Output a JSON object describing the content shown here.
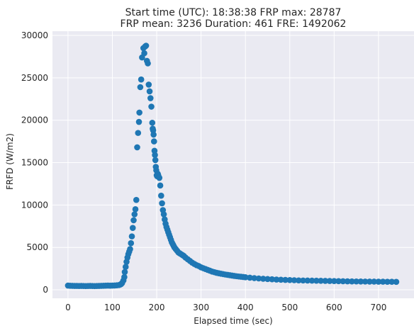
{
  "chart_data": {
    "type": "scatter",
    "title_line1": "Start time (UTC): 18:38:38 FRP max: 28787",
    "title_line2": "FRP mean: 3236 Duration: 461 FRE: 1492062",
    "xlabel": "Elapsed time (sec)",
    "ylabel": "FRFD (W/m2)",
    "xlim": [
      -35,
      780
    ],
    "ylim": [
      -1000,
      30500
    ],
    "xticks": [
      0,
      100,
      200,
      300,
      400,
      500,
      600,
      700
    ],
    "yticks": [
      0,
      5000,
      10000,
      15000,
      20000,
      25000,
      30000
    ],
    "grid": true,
    "colors": {
      "marker": "#1f77b4",
      "background": "#eaeaf2",
      "grid": "#ffffff"
    },
    "series": [
      {
        "points": [
          [
            0,
            500
          ],
          [
            5,
            480
          ],
          [
            10,
            470
          ],
          [
            15,
            460
          ],
          [
            20,
            460
          ],
          [
            25,
            450
          ],
          [
            30,
            460
          ],
          [
            35,
            450
          ],
          [
            40,
            440
          ],
          [
            45,
            450
          ],
          [
            50,
            460
          ],
          [
            55,
            450
          ],
          [
            60,
            440
          ],
          [
            65,
            450
          ],
          [
            70,
            460
          ],
          [
            75,
            470
          ],
          [
            80,
            480
          ],
          [
            85,
            490
          ],
          [
            90,
            500
          ],
          [
            95,
            490
          ],
          [
            100,
            500
          ],
          [
            105,
            510
          ],
          [
            110,
            530
          ],
          [
            115,
            560
          ],
          [
            118,
            620
          ],
          [
            120,
            680
          ],
          [
            122,
            800
          ],
          [
            125,
            1100
          ],
          [
            127,
            1500
          ],
          [
            128,
            2100
          ],
          [
            130,
            2700
          ],
          [
            132,
            3300
          ],
          [
            134,
            3800
          ],
          [
            136,
            4200
          ],
          [
            138,
            4500
          ],
          [
            140,
            4800
          ],
          [
            142,
            5500
          ],
          [
            144,
            6300
          ],
          [
            146,
            7300
          ],
          [
            148,
            8200
          ],
          [
            150,
            8900
          ],
          [
            152,
            9500
          ],
          [
            154,
            10600
          ],
          [
            156,
            16800
          ],
          [
            158,
            18500
          ],
          [
            160,
            19800
          ],
          [
            161,
            20900
          ],
          [
            163,
            23900
          ],
          [
            165,
            24800
          ],
          [
            167,
            27400
          ],
          [
            170,
            28500
          ],
          [
            172,
            27900
          ],
          [
            174,
            28700
          ],
          [
            176,
            28787
          ],
          [
            178,
            27000
          ],
          [
            180,
            26700
          ],
          [
            182,
            24200
          ],
          [
            184,
            23400
          ],
          [
            186,
            22600
          ],
          [
            188,
            21600
          ],
          [
            190,
            19700
          ],
          [
            191,
            19000
          ],
          [
            192,
            18800
          ],
          [
            193,
            18300
          ],
          [
            194,
            17500
          ],
          [
            195,
            16400
          ],
          [
            196,
            15900
          ],
          [
            197,
            15300
          ],
          [
            198,
            14500
          ],
          [
            199,
            14100
          ],
          [
            200,
            13500
          ],
          [
            201,
            13400
          ],
          [
            202,
            13700
          ],
          [
            203,
            13600
          ],
          [
            204,
            13400
          ],
          [
            206,
            13200
          ],
          [
            208,
            12300
          ],
          [
            210,
            11100
          ],
          [
            212,
            10200
          ],
          [
            214,
            9400
          ],
          [
            216,
            8900
          ],
          [
            218,
            8300
          ],
          [
            220,
            7800
          ],
          [
            222,
            7400
          ],
          [
            224,
            7100
          ],
          [
            226,
            6800
          ],
          [
            228,
            6500
          ],
          [
            230,
            6200
          ],
          [
            232,
            5900
          ],
          [
            234,
            5600
          ],
          [
            236,
            5400
          ],
          [
            238,
            5200
          ],
          [
            240,
            5000
          ],
          [
            243,
            4800
          ],
          [
            246,
            4600
          ],
          [
            249,
            4400
          ],
          [
            252,
            4300
          ],
          [
            255,
            4200
          ],
          [
            258,
            4100
          ],
          [
            261,
            4000
          ],
          [
            265,
            3800
          ],
          [
            270,
            3600
          ],
          [
            275,
            3400
          ],
          [
            280,
            3200
          ],
          [
            285,
            3050
          ],
          [
            290,
            2900
          ],
          [
            295,
            2800
          ],
          [
            300,
            2650
          ],
          [
            305,
            2550
          ],
          [
            310,
            2450
          ],
          [
            315,
            2350
          ],
          [
            320,
            2250
          ],
          [
            325,
            2150
          ],
          [
            330,
            2080
          ],
          [
            335,
            2000
          ],
          [
            340,
            1950
          ],
          [
            345,
            1900
          ],
          [
            350,
            1850
          ],
          [
            355,
            1800
          ],
          [
            360,
            1760
          ],
          [
            365,
            1720
          ],
          [
            370,
            1680
          ],
          [
            375,
            1640
          ],
          [
            380,
            1600
          ],
          [
            385,
            1570
          ],
          [
            390,
            1540
          ],
          [
            395,
            1510
          ],
          [
            400,
            1480
          ],
          [
            410,
            1430
          ],
          [
            420,
            1380
          ],
          [
            430,
            1340
          ],
          [
            440,
            1300
          ],
          [
            450,
            1270
          ],
          [
            460,
            1240
          ],
          [
            470,
            1210
          ],
          [
            480,
            1190
          ],
          [
            490,
            1170
          ],
          [
            500,
            1150
          ],
          [
            510,
            1130
          ],
          [
            520,
            1110
          ],
          [
            530,
            1100
          ],
          [
            540,
            1090
          ],
          [
            550,
            1080
          ],
          [
            560,
            1070
          ],
          [
            570,
            1060
          ],
          [
            580,
            1050
          ],
          [
            590,
            1040
          ],
          [
            600,
            1030
          ],
          [
            610,
            1020
          ],
          [
            620,
            1010
          ],
          [
            630,
            1000
          ],
          [
            640,
            990
          ],
          [
            650,
            985
          ],
          [
            660,
            980
          ],
          [
            670,
            975
          ],
          [
            680,
            970
          ],
          [
            690,
            965
          ],
          [
            700,
            960
          ],
          [
            710,
            955
          ],
          [
            720,
            950
          ],
          [
            730,
            945
          ],
          [
            740,
            940
          ]
        ]
      }
    ]
  }
}
